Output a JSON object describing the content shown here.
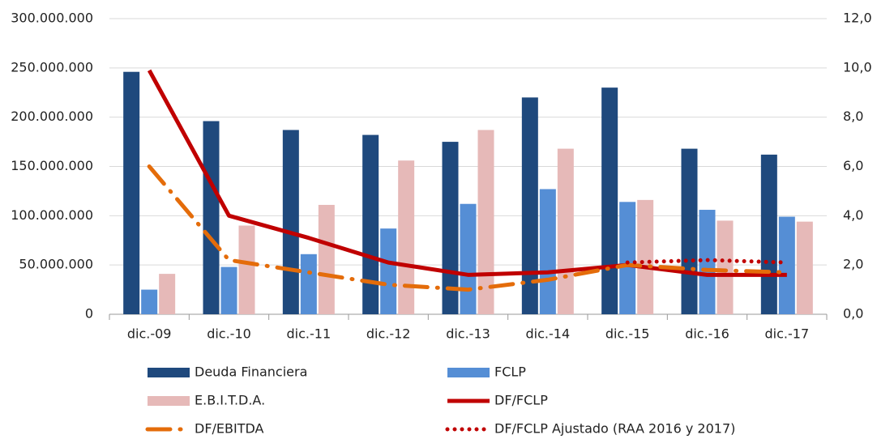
{
  "chart_data": {
    "type": "bar",
    "categories": [
      "dic.-09",
      "dic.-10",
      "dic.-11",
      "dic.-12",
      "dic.-13",
      "dic.-14",
      "dic.-15",
      "dic.-16",
      "dic.-17"
    ],
    "series": [
      {
        "name": "Deuda Financiera",
        "type": "bar",
        "color": "#1f497d",
        "values": [
          246000000,
          196000000,
          187000000,
          182000000,
          175000000,
          220000000,
          230000000,
          168000000,
          162000000
        ]
      },
      {
        "name": "FCLP",
        "type": "bar",
        "color": "#558ed5",
        "values": [
          25000000,
          48000000,
          61000000,
          87000000,
          112000000,
          127000000,
          114000000,
          106000000,
          99000000
        ]
      },
      {
        "name": "E.B.I.T.D.A.",
        "type": "bar",
        "color": "#e6b9b8",
        "values": [
          41000000,
          90000000,
          111000000,
          156000000,
          187000000,
          168000000,
          116000000,
          95000000,
          94000000
        ]
      },
      {
        "name": "DF/FCLP",
        "type": "line",
        "axis": "y2",
        "dash": "solid",
        "color": "#c00000",
        "values": [
          9.9,
          4.0,
          3.1,
          2.1,
          1.6,
          1.7,
          2.0,
          1.6,
          1.6
        ]
      },
      {
        "name": "DF/EBITDA",
        "type": "line",
        "axis": "y2",
        "dash": "dashdot",
        "color": "#e46c0a",
        "values": [
          6.0,
          2.2,
          1.7,
          1.2,
          1.0,
          1.4,
          2.0,
          1.8,
          1.7
        ]
      },
      {
        "name": "DF/FCLP Ajustado (RAA 2016 y 2017)",
        "type": "line",
        "axis": "y2",
        "dash": "dotted",
        "color": "#c00000",
        "values": [
          null,
          null,
          null,
          null,
          null,
          null,
          2.1,
          2.2,
          2.1
        ]
      }
    ],
    "ylim": [
      0,
      300000000
    ],
    "yticks": [
      0,
      {
        "value": 50000000,
        "label": "50.000.000"
      },
      {
        "value": 100000000,
        "label": "100.000.000"
      },
      {
        "value": 150000000,
        "label": "150.000.000"
      },
      {
        "value": 200000000,
        "label": "200.000.000"
      },
      {
        "value": 250000000,
        "label": "250.000.000"
      },
      {
        "value": 300000000,
        "label": "300.000.000"
      }
    ],
    "y2lim": [
      0,
      12
    ],
    "y2ticks": [
      {
        "value": 0,
        "label": "0,0"
      },
      {
        "value": 2,
        "label": "2,0"
      },
      {
        "value": 4,
        "label": "4,0"
      },
      {
        "value": 6,
        "label": "6,0"
      },
      {
        "value": 8,
        "label": "8,0"
      },
      {
        "value": 10,
        "label": "10,0"
      },
      {
        "value": 12,
        "label": "12,0"
      }
    ],
    "grid": true,
    "legend": "bottom"
  }
}
